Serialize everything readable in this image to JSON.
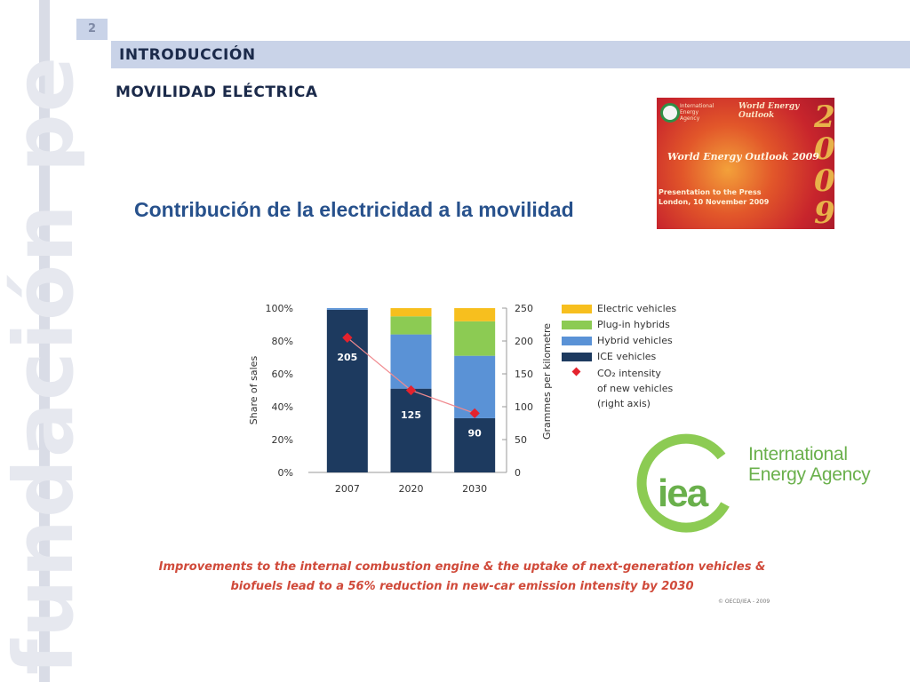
{
  "watermark": {
    "text": "fundación pe"
  },
  "page_number": "2",
  "header": {
    "section": "INTRODUCCIÓN",
    "subsection": "MOVILIDAD ELÉCTRICA"
  },
  "title": "Contribución de la electricidad a la movilidad",
  "weo_cover": {
    "top_label": "World Energy Outlook",
    "name": "World Energy Outlook 2009",
    "presentation": "Presentation to the Press",
    "place_date": "London, 10 November 2009",
    "year_digits": [
      "2",
      "0",
      "0",
      "9"
    ],
    "logo_text": "International Energy Agency"
  },
  "chart_data": {
    "type": "bar",
    "stacked": true,
    "categories": [
      "2007",
      "2020",
      "2030"
    ],
    "series": [
      {
        "name": "ICE vehicles",
        "color": "#1d3a5f",
        "values": [
          99,
          51,
          33
        ]
      },
      {
        "name": "Hybrid vehicles",
        "color": "#5a92d6",
        "values": [
          1,
          33,
          38
        ]
      },
      {
        "name": "Plug-in hybrids",
        "color": "#8ccb53",
        "values": [
          0,
          11,
          21
        ]
      },
      {
        "name": "Electric vehicles",
        "color": "#f7bf1e",
        "values": [
          0,
          5,
          8
        ]
      }
    ],
    "line": {
      "name": "CO₂ intensity of new vehicles (right axis)",
      "legend_lines": [
        "CO₂ intensity",
        "of new vehicles",
        "(right axis)"
      ],
      "color": "#e4222d",
      "values": [
        205,
        125,
        90
      ],
      "labels": [
        "205",
        "125",
        "90"
      ]
    },
    "ylabel": "Share of sales",
    "y2label": "Grammes per kilometre",
    "ylim": [
      0,
      100
    ],
    "y2lim": [
      0,
      250
    ],
    "yticks": [
      "0%",
      "20%",
      "40%",
      "60%",
      "80%",
      "100%"
    ],
    "y2ticks": [
      "0",
      "50",
      "100",
      "150",
      "200",
      "250"
    ],
    "legend_position": "right",
    "legend_order": [
      "Electric vehicles",
      "Plug-in hybrids",
      "Hybrid vehicles",
      "ICE vehicles"
    ]
  },
  "iea_logo": {
    "mark": "iea",
    "name_line1": "International",
    "name_line2": "Energy Agency",
    "color": "#6ab04c"
  },
  "caption": {
    "line1": "Improvements to the internal combustion engine & the uptake of next-generation vehicles &",
    "line2": "biofuels lead to a 56% reduction in new-car emission intensity by 2030"
  },
  "copyright": "© OECD/IEA - 2009"
}
